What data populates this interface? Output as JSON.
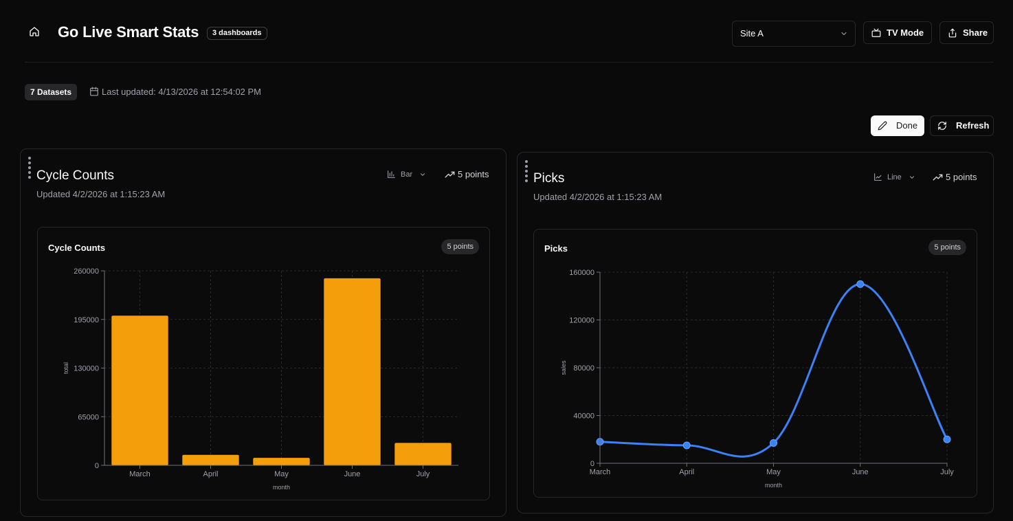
{
  "header": {
    "title": "Go Live Smart Stats",
    "dashboards_badge": "3 dashboards",
    "site_select_value": "Site A",
    "tv_mode_label": "TV Mode",
    "share_label": "Share"
  },
  "meta": {
    "datasets_badge": "7 Datasets",
    "last_updated": "Last updated: 4/13/2026 at 12:54:02 PM"
  },
  "toolbar": {
    "done_label": "Done",
    "refresh_label": "Refresh"
  },
  "colors": {
    "bar": "#f59e0b",
    "line": "#3b82f6",
    "background": "#0a0a0a"
  },
  "panels": [
    {
      "title": "Cycle Counts",
      "updated": "Updated 4/2/2026 at 1:15:23 AM",
      "chart_type_label": "Bar",
      "points_label": "5 points",
      "card_title": "Cycle Counts",
      "card_badge": "5 points"
    },
    {
      "title": "Picks",
      "updated": "Updated 4/2/2026 at 1:15:23 AM",
      "chart_type_label": "Line",
      "points_label": "5 points",
      "card_title": "Picks",
      "card_badge": "5 points"
    }
  ],
  "chart_data": [
    {
      "type": "bar",
      "title": "Cycle Counts",
      "categories": [
        "March",
        "April",
        "May",
        "June",
        "July"
      ],
      "values": [
        200000,
        14000,
        10000,
        250000,
        30000
      ],
      "xlabel": "month",
      "ylabel": "total",
      "ylim": [
        0,
        260000
      ],
      "yticks": [
        "0",
        "65000",
        "130000",
        "195000",
        "260000"
      ],
      "grid": true
    },
    {
      "type": "line",
      "title": "Picks",
      "categories": [
        "March",
        "April",
        "May",
        "June",
        "July"
      ],
      "values": [
        18000,
        15000,
        17000,
        150000,
        20000
      ],
      "xlabel": "month",
      "ylabel": "sales",
      "ylim": [
        0,
        160000
      ],
      "yticks": [
        "0",
        "40000",
        "80000",
        "120000",
        "160000"
      ],
      "grid": true
    }
  ]
}
